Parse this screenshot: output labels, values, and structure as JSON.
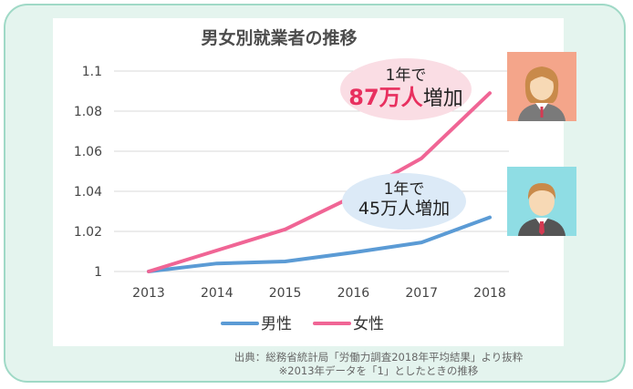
{
  "chart_data": {
    "type": "line",
    "title": "男女別就業者の推移",
    "categories": [
      "2013",
      "2014",
      "2015",
      "2016",
      "2017",
      "2018"
    ],
    "series": [
      {
        "name": "男性",
        "color": "#5b9bd5",
        "values": [
          1.0,
          1.004,
          1.005,
          1.0095,
          1.0145,
          1.027
        ]
      },
      {
        "name": "女性",
        "color": "#f06595",
        "values": [
          1.0,
          1.0105,
          1.021,
          1.0375,
          1.0565,
          1.089
        ]
      }
    ],
    "ylim": [
      1.0,
      1.1
    ],
    "yticks": [
      "1",
      "1.02",
      "1.04",
      "1.06",
      "1.08",
      "1.1"
    ],
    "grid": true,
    "legend_position": "bottom"
  },
  "annotations": {
    "female": {
      "line1": "1年で",
      "number": "87万人",
      "suffix": "増加",
      "bubble_color": "#fadde4",
      "number_color": "#e8305f"
    },
    "male": {
      "line1": "1年で",
      "text": "45万人増加",
      "bubble_color": "#dceaf7"
    }
  },
  "avatars": {
    "female": {
      "icon": "woman-avatar-icon",
      "bg": "#f4a58a"
    },
    "male": {
      "icon": "man-avatar-icon",
      "bg": "#8fdde4"
    }
  },
  "source": {
    "line1": "出典：総務省統計局「労働力調査2018年平均結果」より抜粋",
    "line2": "※2013年データを「1」としたときの推移"
  }
}
